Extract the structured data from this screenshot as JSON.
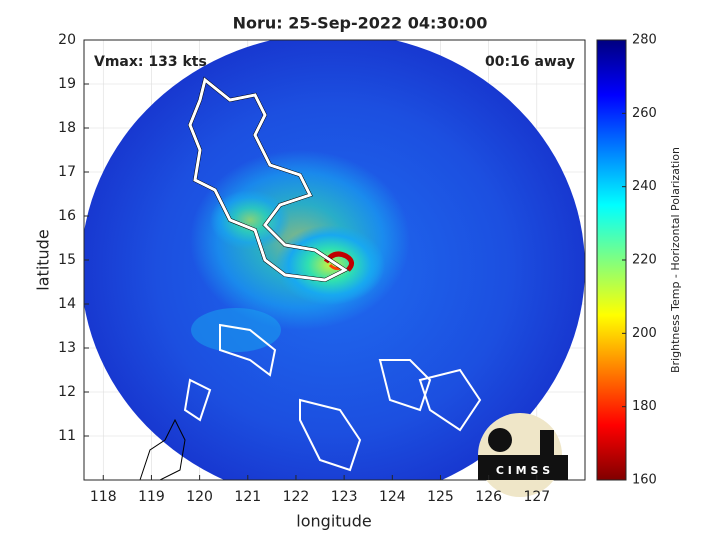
{
  "title": "Noru: 25-Sep-2022 04:30:00",
  "annotations": {
    "vmax": "Vmax: 133 kts",
    "time_away": "00:16 away"
  },
  "axes": {
    "xlabel": "longitude",
    "ylabel": "latitude",
    "xlim": [
      117.6,
      128
    ],
    "ylim": [
      10,
      20
    ],
    "xticks": [
      118,
      119,
      120,
      121,
      122,
      123,
      124,
      125,
      126,
      127
    ],
    "yticks": [
      11,
      12,
      13,
      14,
      15,
      16,
      17,
      18,
      19,
      20
    ]
  },
  "colorbar": {
    "label": "Brightness Temp - Horizontal Polarization",
    "lim": [
      160,
      280
    ],
    "ticks": [
      160,
      180,
      200,
      220,
      240,
      260,
      280
    ]
  },
  "logo_text": "C I M S S"
}
